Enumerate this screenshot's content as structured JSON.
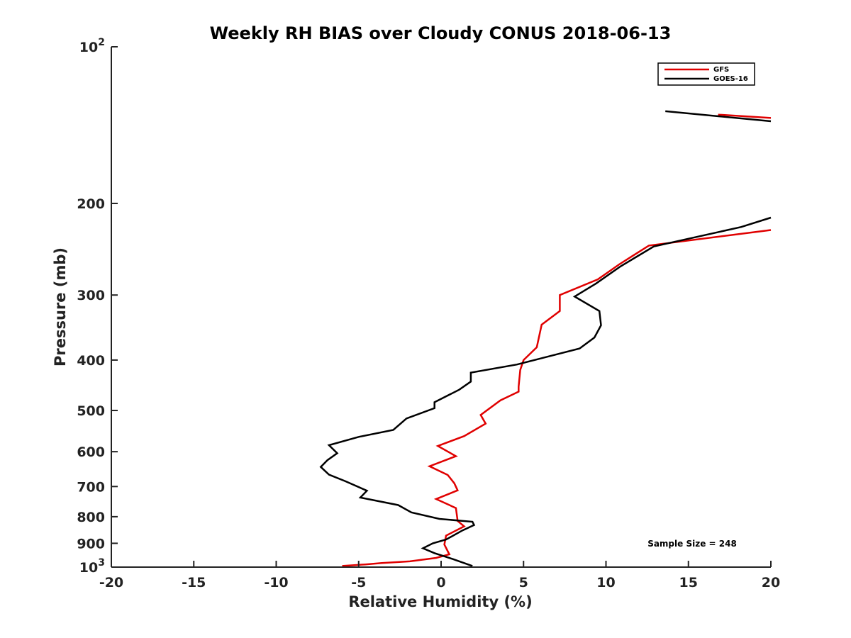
{
  "chart_data": {
    "type": "line",
    "title": "Weekly RH BIAS over Cloudy CONUS 2018-06-13",
    "xlabel": "Relative Humidity (%)",
    "ylabel": "Pressure (mb)",
    "xlim": [
      -20,
      20
    ],
    "ylim": [
      100,
      1000
    ],
    "y_scale": "log",
    "y_reversed": true,
    "grid": false,
    "legend_position": "top-right",
    "x_ticks": [
      -20,
      -15,
      -10,
      -5,
      0,
      5,
      10,
      15,
      20
    ],
    "x_tick_labels": [
      "-20",
      "-15",
      "-10",
      "-5",
      "0",
      "5",
      "10",
      "15",
      "20"
    ],
    "y_ticks": [
      100,
      200,
      300,
      400,
      500,
      600,
      700,
      800,
      900,
      1000
    ],
    "y_tick_labels": [
      {
        "base": "10",
        "exp": "2"
      },
      {
        "base": "200",
        "exp": ""
      },
      {
        "base": "300",
        "exp": ""
      },
      {
        "base": "400",
        "exp": ""
      },
      {
        "base": "500",
        "exp": ""
      },
      {
        "base": "600",
        "exp": ""
      },
      {
        "base": "700",
        "exp": ""
      },
      {
        "base": "800",
        "exp": ""
      },
      {
        "base": "900",
        "exp": ""
      },
      {
        "base": "10",
        "exp": "3"
      }
    ],
    "annotation": "Sample Size = 248",
    "series": [
      {
        "name": "GFS",
        "color": "#e00000",
        "segments": [
          [
            [
              16.8,
              135
            ],
            [
              20,
              137
            ]
          ],
          [
            [
              20,
              225
            ],
            [
              12.6,
              241
            ],
            [
              10.8,
              262
            ],
            [
              9.5,
              280
            ],
            [
              7.2,
              300
            ],
            [
              7.2,
              322
            ],
            [
              6.1,
              342
            ],
            [
              5.8,
              378
            ],
            [
              5.0,
              400
            ],
            [
              4.8,
              418
            ],
            [
              4.7,
              450
            ],
            [
              4.7,
              460
            ],
            [
              3.6,
              478
            ],
            [
              2.4,
              510
            ],
            [
              2.7,
              530
            ],
            [
              1.4,
              560
            ],
            [
              -0.2,
              585
            ],
            [
              0.9,
              612
            ],
            [
              -0.7,
              640
            ],
            [
              0.4,
              665
            ],
            [
              0.8,
              690
            ],
            [
              1.0,
              712
            ],
            [
              -0.3,
              740
            ],
            [
              0.9,
              770
            ],
            [
              1.0,
              815
            ],
            [
              1.4,
              835
            ],
            [
              0.3,
              870
            ],
            [
              0.2,
              905
            ],
            [
              0.5,
              945
            ],
            [
              -0.3,
              960
            ],
            [
              -1.9,
              975
            ],
            [
              -3.6,
              982
            ],
            [
              -4.6,
              988
            ],
            [
              -6.0,
              995
            ]
          ]
        ]
      },
      {
        "name": "GOES-16",
        "color": "#000000",
        "segments": [
          [
            [
              13.6,
              133
            ],
            [
              20,
              139
            ]
          ],
          [
            [
              20,
              213
            ],
            [
              18.2,
              222
            ],
            [
              12.9,
              242
            ],
            [
              10.9,
              264
            ],
            [
              9.4,
              285
            ],
            [
              8.1,
              302
            ],
            [
              9.6,
              322
            ],
            [
              9.7,
              343
            ],
            [
              9.3,
              362
            ],
            [
              8.4,
              380
            ],
            [
              4.6,
              408
            ],
            [
              1.8,
              423
            ],
            [
              1.8,
              440
            ],
            [
              1.1,
              456
            ],
            [
              -0.4,
              482
            ],
            [
              -0.4,
              495
            ],
            [
              -2.1,
              518
            ],
            [
              -2.9,
              545
            ],
            [
              -5.0,
              562
            ],
            [
              -6.8,
              583
            ],
            [
              -6.3,
              604
            ],
            [
              -6.9,
              623
            ],
            [
              -7.3,
              642
            ],
            [
              -6.8,
              664
            ],
            [
              -5.8,
              684
            ],
            [
              -4.5,
              713
            ],
            [
              -4.9,
              735
            ],
            [
              -2.6,
              760
            ],
            [
              -1.8,
              785
            ],
            [
              -0.1,
              808
            ],
            [
              1.9,
              818
            ],
            [
              2.0,
              830
            ],
            [
              1.3,
              850
            ],
            [
              0.3,
              885
            ],
            [
              -0.5,
              900
            ],
            [
              -1.1,
              920
            ],
            [
              -0.4,
              940
            ],
            [
              0.7,
              965
            ],
            [
              1.9,
              995
            ]
          ]
        ]
      }
    ]
  }
}
